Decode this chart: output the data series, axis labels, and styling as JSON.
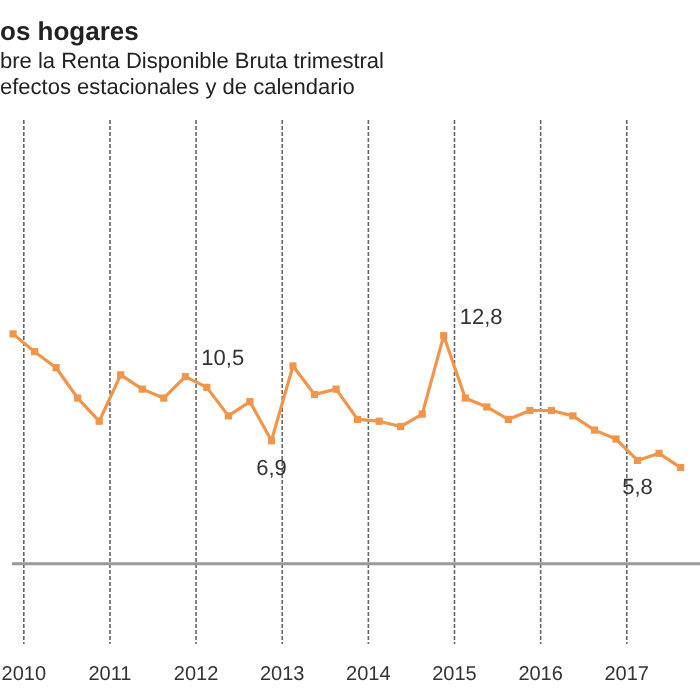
{
  "chart_data": {
    "type": "line",
    "title": "os hogares",
    "subtitle": "bre la Renta Disponible Bruta trimestral\nefectos estacionales y de calendario",
    "x": [
      2009.875,
      2010.125,
      2010.375,
      2010.625,
      2010.875,
      2011.125,
      2011.375,
      2011.625,
      2011.875,
      2012.125,
      2012.375,
      2012.625,
      2012.875,
      2013.125,
      2013.375,
      2013.625,
      2013.875,
      2014.125,
      2014.375,
      2014.625,
      2014.875,
      2015.125,
      2015.375,
      2015.625,
      2015.875,
      2016.125,
      2016.375,
      2016.625,
      2016.875,
      2017.125,
      2017.375,
      2017.625
    ],
    "series": [
      {
        "color": "#f0954a",
        "values": [
          12.9,
          11.9,
          11.0,
          9.3,
          8.0,
          10.6,
          9.8,
          9.3,
          10.5,
          9.9,
          8.3,
          9.1,
          6.9,
          11.1,
          9.5,
          9.8,
          8.1,
          8.0,
          7.7,
          8.4,
          12.8,
          9.3,
          8.8,
          8.1,
          8.6,
          8.6,
          8.3,
          7.5,
          7.0,
          5.8,
          6.2,
          5.4
        ],
        "value_labels": [
          null,
          null,
          null,
          null,
          null,
          null,
          null,
          null,
          "10,5",
          null,
          null,
          null,
          "6,9",
          null,
          null,
          null,
          null,
          null,
          null,
          null,
          "12,8",
          null,
          null,
          null,
          null,
          null,
          null,
          null,
          null,
          "5,8",
          null,
          null
        ]
      }
    ],
    "xlim": [
      2009.863,
      2017.85
    ],
    "xticks": [
      2010,
      2011,
      2012,
      2013,
      2014,
      2015,
      2016,
      2017
    ],
    "ylim": [
      -4.5,
      24.9
    ],
    "ref_lines": [
      {
        "axis": "y",
        "value": 0,
        "color": "#999999"
      }
    ],
    "grid": "x",
    "tick_labels": "x",
    "marker": "square",
    "line_style": "solid"
  }
}
